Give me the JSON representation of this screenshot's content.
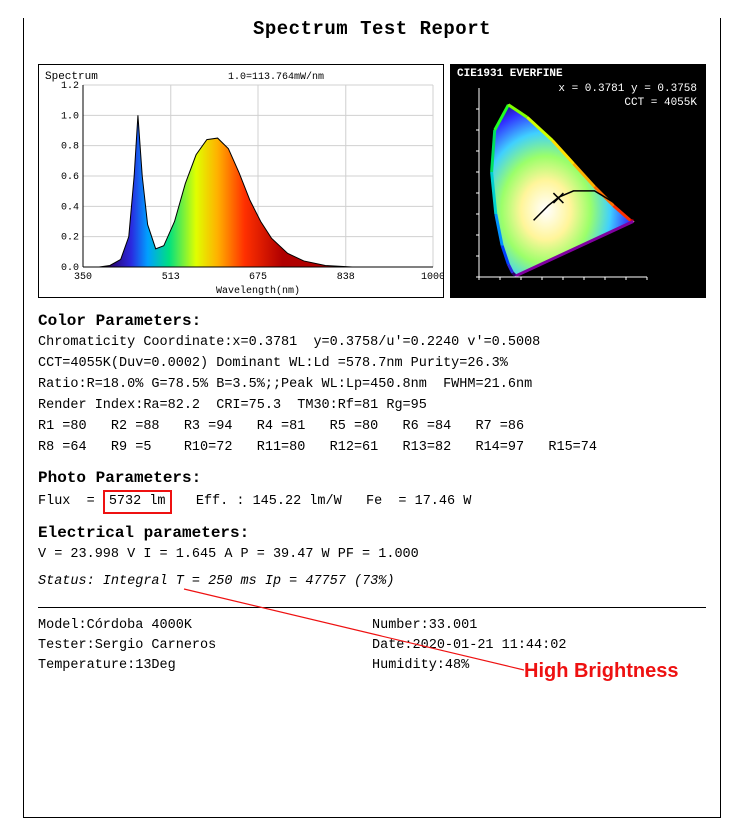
{
  "title": "Spectrum Test Report",
  "spectrum_chart": {
    "label": "Spectrum",
    "y_max": 1.2,
    "header": "1.0=113.764mW/nm",
    "x_label": "Wavelength(nm)",
    "x_ticks": [
      350,
      513,
      675,
      838,
      1000
    ],
    "y_ticks": [
      0.0,
      0.2,
      0.4,
      0.6,
      0.8,
      1.0,
      1.2
    ],
    "background": "#ffffff",
    "axis_color": "#000000",
    "grid_color": "#d0d0d0",
    "curve": [
      [
        380,
        0.0
      ],
      [
        400,
        0.01
      ],
      [
        420,
        0.05
      ],
      [
        435,
        0.2
      ],
      [
        445,
        0.6
      ],
      [
        452,
        1.0
      ],
      [
        460,
        0.6
      ],
      [
        470,
        0.28
      ],
      [
        485,
        0.12
      ],
      [
        500,
        0.14
      ],
      [
        520,
        0.3
      ],
      [
        540,
        0.55
      ],
      [
        560,
        0.74
      ],
      [
        580,
        0.84
      ],
      [
        600,
        0.85
      ],
      [
        620,
        0.78
      ],
      [
        640,
        0.62
      ],
      [
        660,
        0.44
      ],
      [
        680,
        0.3
      ],
      [
        700,
        0.19
      ],
      [
        730,
        0.09
      ],
      [
        760,
        0.04
      ],
      [
        800,
        0.01
      ],
      [
        850,
        0.0
      ],
      [
        1000,
        0.0
      ]
    ],
    "rainbow_stops": [
      [
        "#2a006e",
        400
      ],
      [
        "#2a2ae0",
        440
      ],
      [
        "#00a0ff",
        470
      ],
      [
        "#00e080",
        510
      ],
      [
        "#e0ff00",
        560
      ],
      [
        "#ffb000",
        600
      ],
      [
        "#ff3000",
        650
      ],
      [
        "#b00000",
        720
      ]
    ]
  },
  "cie_chart": {
    "title": "CIE1931 EVERFINE",
    "line1": "x = 0.3781 y = 0.3758",
    "line2": "CCT = 4055K",
    "bg": "#000000",
    "text": "#ffffff"
  },
  "color_params_head": "Color Parameters:",
  "color_params": [
    "Chromaticity Coordinate:x=0.3781  y=0.3758/u'=0.2240 v'=0.5008",
    "CCT=4055K(Duv=0.0002) Dominant WL:Ld =578.7nm Purity=26.3%",
    "Ratio:R=18.0% G=78.5% B=3.5%;;Peak WL:Lp=450.8nm  FWHM=21.6nm",
    "Render Index:Ra=82.2  CRI=75.3  TM30:Rf=81 Rg=95",
    "R1 =80   R2 =88   R3 =94   R4 =81   R5 =80   R6 =84   R7 =86",
    "R8 =64   R9 =5    R10=72   R11=80   R12=61   R13=82   R14=97   R15=74"
  ],
  "photo_head": "Photo Parameters:",
  "photo": {
    "flux_label": "Flux  =",
    "flux_value": "5732 lm",
    "eff": "Eff. : 145.22 lm/W",
    "fe": "Fe  = 17.46 W"
  },
  "elec_head": "Electrical parameters:",
  "elec_line": "V = 23.998 V    I = 1.645 A    P = 39.47 W PF = 1.000",
  "status": "Status:  Integral T = 250 ms   Ip = 47757 (73%)",
  "annotation": "High Brightness",
  "footer": {
    "model_l": "Model:",
    "model": "Córdoba 4000K",
    "tester_l": "Tester:",
    "tester": "Sergio Carneros",
    "temp_l": "Temperature:",
    "temp": "13Deg",
    "number_l": "Number:",
    "number": "33.001",
    "date_l": "Date:",
    "date": "2020-01-21 11:44:02",
    "humidity_l": "Humidity:",
    "humidity": "48%"
  }
}
